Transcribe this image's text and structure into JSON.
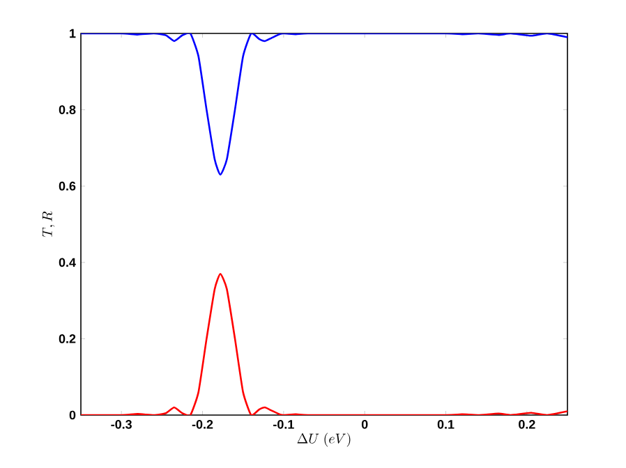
{
  "chart_data": {
    "type": "line",
    "xlabel": "\\Delta U\\ (eV)",
    "ylabel": "T,R",
    "xlim": [
      -0.35,
      0.25
    ],
    "ylim": [
      0,
      1
    ],
    "xticks": [
      -0.3,
      -0.2,
      -0.1,
      0,
      0.1,
      0.2
    ],
    "yticks": [
      0,
      0.2,
      0.4,
      0.6,
      0.8,
      1
    ],
    "grid": false,
    "marker": "none",
    "line_style": "solid",
    "series": [
      {
        "color": "#0000ff",
        "x": [
          -0.35,
          -0.3,
          -0.28,
          -0.26,
          -0.245,
          -0.235,
          -0.225,
          -0.215,
          -0.205,
          -0.195,
          -0.185,
          -0.178,
          -0.17,
          -0.16,
          -0.15,
          -0.14,
          -0.13,
          -0.123,
          -0.115,
          -0.105,
          -0.1,
          -0.085,
          -0.07,
          0,
          0.1,
          0.12,
          0.14,
          0.165,
          0.18,
          0.205,
          0.225,
          0.25
        ],
        "values": [
          1,
          1,
          0.997,
          1,
          0.995,
          0.98,
          0.995,
          1,
          0.94,
          0.8,
          0.67,
          0.63,
          0.67,
          0.8,
          0.94,
          1,
          0.985,
          0.98,
          0.988,
          0.998,
          1,
          0.998,
          1,
          1,
          1,
          0.998,
          1,
          0.996,
          1,
          0.994,
          1,
          0.99
        ]
      },
      {
        "color": "#ff0000",
        "x": [
          -0.35,
          -0.3,
          -0.28,
          -0.26,
          -0.245,
          -0.235,
          -0.225,
          -0.215,
          -0.205,
          -0.195,
          -0.185,
          -0.178,
          -0.17,
          -0.16,
          -0.15,
          -0.14,
          -0.13,
          -0.123,
          -0.115,
          -0.105,
          -0.1,
          -0.085,
          -0.07,
          0,
          0.1,
          0.12,
          0.14,
          0.165,
          0.18,
          0.205,
          0.225,
          0.25
        ],
        "values": [
          0,
          0,
          0.003,
          0,
          0.005,
          0.02,
          0.005,
          0,
          0.06,
          0.2,
          0.33,
          0.37,
          0.33,
          0.2,
          0.06,
          0,
          0.015,
          0.02,
          0.012,
          0.002,
          0,
          0.002,
          0,
          0,
          0,
          0.002,
          0,
          0.004,
          0,
          0.006,
          0,
          0.01
        ]
      }
    ]
  }
}
